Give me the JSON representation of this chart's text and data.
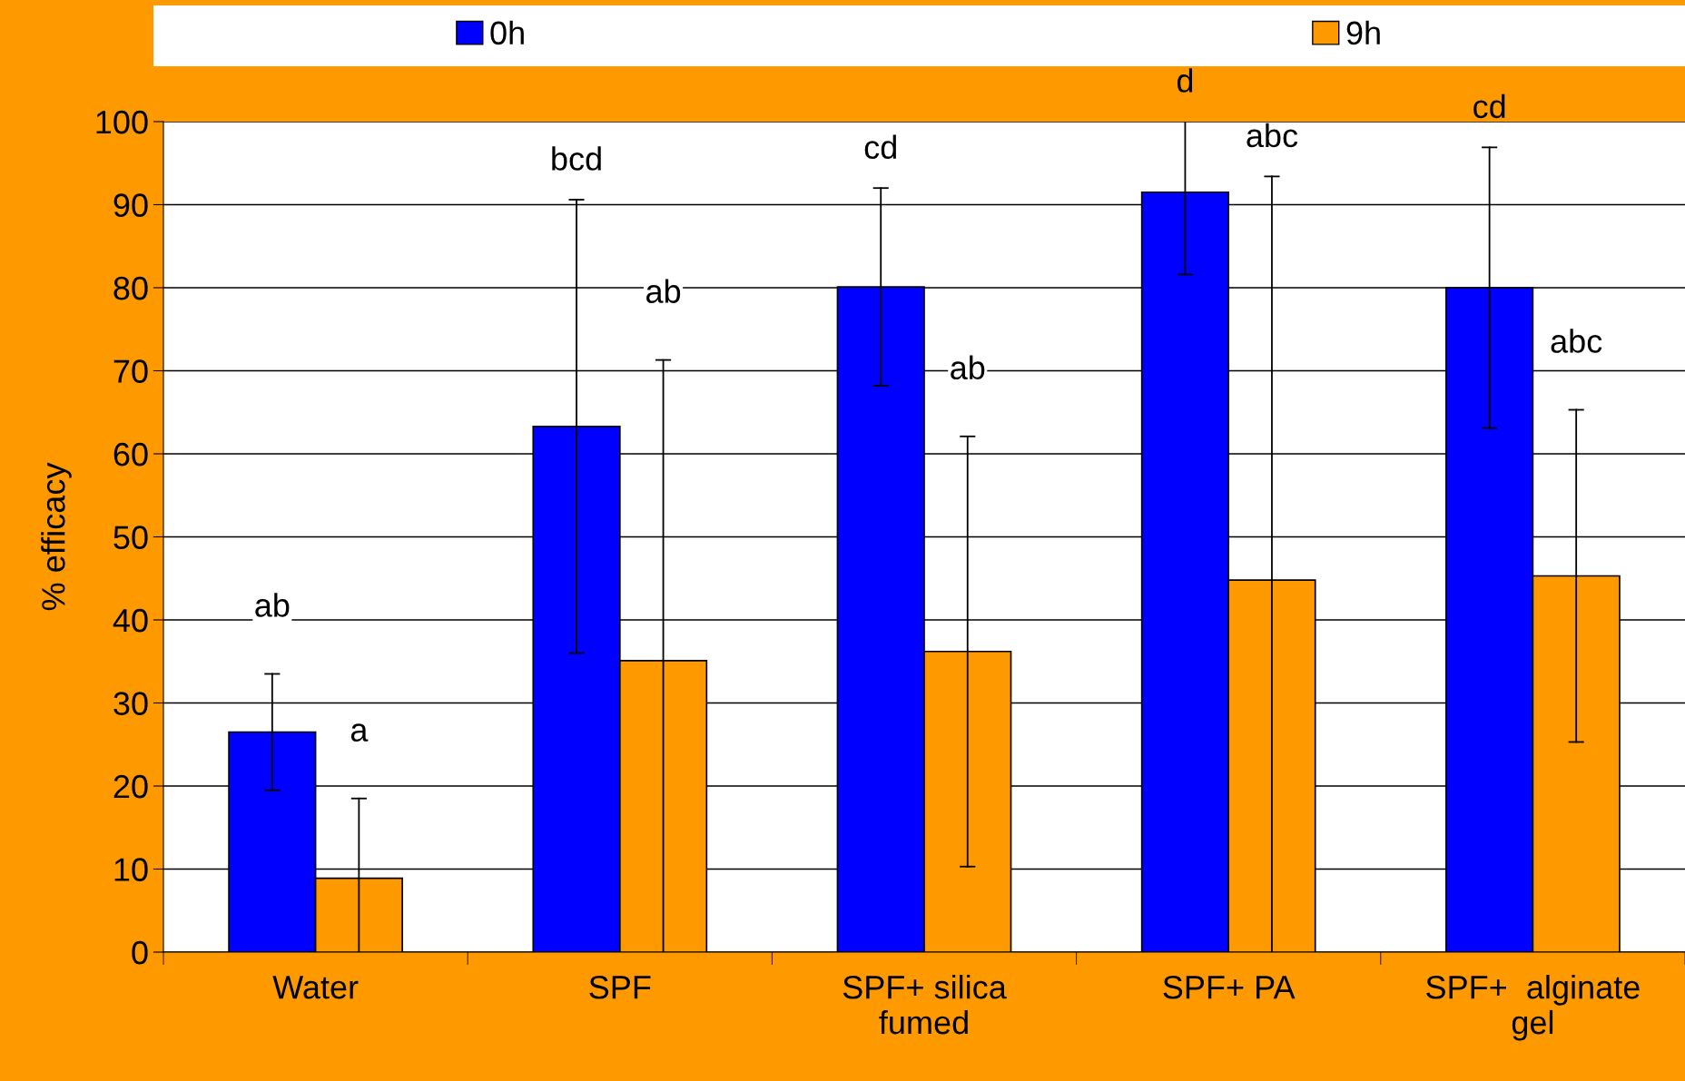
{
  "chart_data": {
    "type": "bar",
    "ylabel": "% efficacy",
    "categories": [
      "Water",
      "SPF",
      "SPF+ silica\nfumed",
      "SPF+ PA",
      "SPF+  alginate\ngel"
    ],
    "series": [
      {
        "name": "0h",
        "color": "#0000ff",
        "values": [
          26.5,
          63.3,
          80.1,
          91.5,
          80.0
        ],
        "errors": [
          7,
          27.3,
          11.9,
          [
            81.6,
            100
          ],
          16.9
        ]
      },
      {
        "name": "9h",
        "color": "#ff9900",
        "values": [
          8.9,
          35.1,
          36.2,
          44.8,
          45.3
        ],
        "errors": [
          [
            0,
            18.5
          ],
          [
            0,
            71.3
          ],
          25.9,
          [
            0,
            93.4
          ],
          20
        ]
      }
    ],
    "ylim": [
      0,
      100
    ],
    "yticks": [
      0,
      10,
      20,
      30,
      40,
      50,
      60,
      70,
      80,
      90,
      100
    ],
    "grid": "y",
    "legend": "top",
    "annotations": [
      "ab",
      "a",
      "bcd",
      "ab",
      "cd",
      "ab",
      "d",
      "abc",
      "cd",
      "abc"
    ]
  }
}
